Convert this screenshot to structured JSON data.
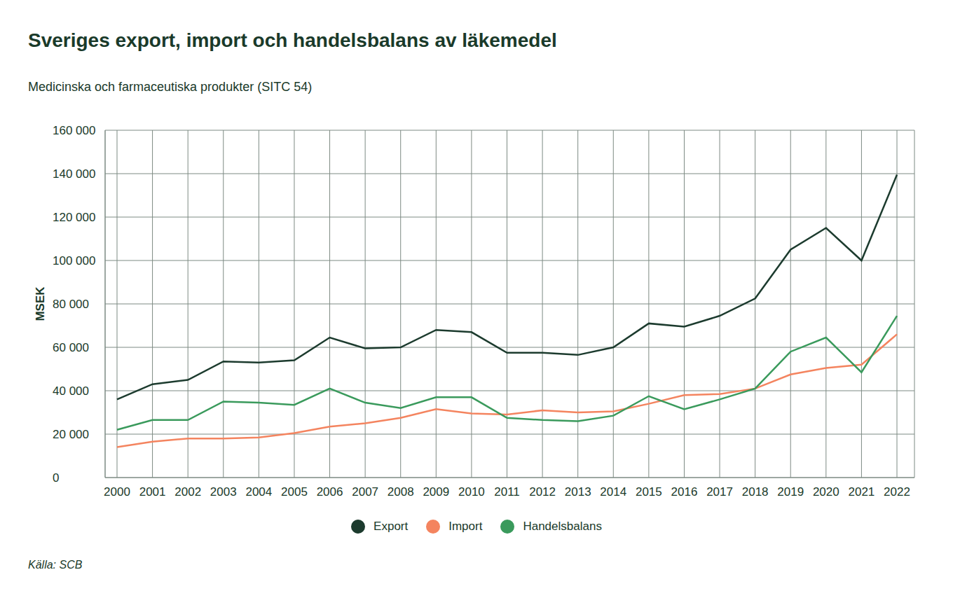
{
  "chart_data": {
    "type": "line",
    "title": "Sveriges export, import och handelsbalans av läkemedel",
    "subtitle": "Medicinska och farmaceutiska produkter (SITC 54)",
    "y_label": "MSEK",
    "source": "Källa: SCB",
    "categories": [
      "2000",
      "2001",
      "2002",
      "2003",
      "2004",
      "2005",
      "2006",
      "2007",
      "2008",
      "2009",
      "2010",
      "2011",
      "2012",
      "2013",
      "2014",
      "2015",
      "2016",
      "2017",
      "2018",
      "2019",
      "2020",
      "2021",
      "2022"
    ],
    "series": [
      {
        "name": "Export",
        "color": "#1c3b2e",
        "values": [
          36000,
          43000,
          45000,
          53500,
          53000,
          54000,
          64500,
          59500,
          60000,
          68000,
          67000,
          57500,
          57500,
          56500,
          60000,
          71000,
          69500,
          74500,
          82500,
          105000,
          115000,
          100000,
          139500
        ]
      },
      {
        "name": "Import",
        "color": "#f4845f",
        "values": [
          14000,
          16500,
          18000,
          18000,
          18500,
          20500,
          23500,
          25000,
          27500,
          31500,
          29500,
          29000,
          31000,
          30000,
          30500,
          34000,
          38000,
          38500,
          41000,
          47500,
          50500,
          52000,
          66000
        ]
      },
      {
        "name": "Handelsbalans",
        "color": "#3a9a5c",
        "values": [
          22000,
          26500,
          26500,
          35000,
          34500,
          33500,
          41000,
          34500,
          32000,
          37000,
          37000,
          27500,
          26500,
          26000,
          28500,
          37500,
          31500,
          36000,
          41000,
          58000,
          64500,
          48500,
          74500
        ]
      }
    ],
    "ylim": [
      0,
      160000
    ],
    "yticks": [
      0,
      {
        "value": 20000,
        "label": "20 000"
      },
      {
        "value": 40000,
        "label": "40 000"
      },
      {
        "value": 60000,
        "label": "60 000"
      },
      {
        "value": 80000,
        "label": "80 000"
      },
      {
        "value": 100000,
        "label": "100 000"
      },
      {
        "value": 120000,
        "label": "120 000"
      },
      {
        "value": 140000,
        "label": "140 000"
      },
      {
        "value": 160000,
        "label": "160 000"
      }
    ],
    "grid": true,
    "legend": "bottom"
  }
}
